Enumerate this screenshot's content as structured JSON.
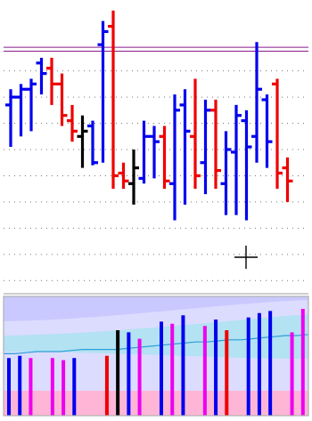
{
  "colors": {
    "up": "#0000ee",
    "down": "#ee0000",
    "neutral": "#000000",
    "volume_magenta": "#ee00ee",
    "grid": "#777777",
    "ref_line": "#8a1a8a",
    "ma_line": "#2aa0d8",
    "band_outer": "#c9c9ff",
    "band_middle": "#dcdcff",
    "band_inner": "#b3e2f2",
    "band_low": "#ffb6d6",
    "panel_border": "#b0b0b0"
  },
  "chart_data": [
    {
      "type": "ohlc",
      "name": "price-panel",
      "y_domain": [
        0,
        100
      ],
      "reference_lines": [
        94.0,
        92.5
      ],
      "gridlines": [
        85,
        75,
        65,
        55,
        45,
        35,
        25,
        15,
        5
      ],
      "bars": [
        {
          "open": 72,
          "high": 78,
          "low": 56,
          "close": 75,
          "color": "up"
        },
        {
          "open": 75,
          "high": 80,
          "low": 60,
          "close": 78,
          "color": "up"
        },
        {
          "open": 78,
          "high": 82,
          "low": 62,
          "close": 80,
          "color": "up"
        },
        {
          "open": 88,
          "high": 90,
          "low": 76,
          "close": 84,
          "color": "up"
        },
        {
          "open": 86,
          "high": 90,
          "low": 72,
          "close": 80,
          "color": "down"
        },
        {
          "open": 80,
          "high": 84,
          "low": 64,
          "close": 68,
          "color": "down"
        },
        {
          "open": 66,
          "high": 72,
          "low": 58,
          "close": 62,
          "color": "down"
        },
        {
          "open": 60,
          "high": 68,
          "low": 48,
          "close": 62,
          "color": "neutral"
        },
        {
          "open": 64,
          "high": 66,
          "low": 49,
          "close": 50,
          "color": "up"
        },
        {
          "open": 95,
          "high": 104,
          "low": 50,
          "close": 100,
          "color": "up"
        },
        {
          "open": 102,
          "high": 108,
          "low": 40,
          "close": 45,
          "color": "down"
        },
        {
          "open": 46,
          "high": 50,
          "low": 40,
          "close": 43,
          "color": "down"
        },
        {
          "open": 42,
          "high": 55,
          "low": 34,
          "close": 48,
          "color": "neutral"
        },
        {
          "open": 44,
          "high": 66,
          "low": 42,
          "close": 60,
          "color": "up"
        },
        {
          "open": 60,
          "high": 64,
          "low": 44,
          "close": 58,
          "color": "up"
        },
        {
          "open": 60,
          "high": 64,
          "low": 40,
          "close": 43,
          "color": "down"
        },
        {
          "open": 42,
          "high": 76,
          "low": 28,
          "close": 70,
          "color": "up"
        },
        {
          "open": 72,
          "high": 78,
          "low": 34,
          "close": 62,
          "color": "up"
        },
        {
          "open": 60,
          "high": 82,
          "low": 40,
          "close": 45,
          "color": "down"
        },
        {
          "open": 50,
          "high": 74,
          "low": 38,
          "close": 70,
          "color": "up"
        },
        {
          "open": 70,
          "high": 74,
          "low": 40,
          "close": 47,
          "color": "down"
        },
        {
          "open": 42,
          "high": 62,
          "low": 30,
          "close": 55,
          "color": "up"
        },
        {
          "open": 54,
          "high": 72,
          "low": 30,
          "close": 68,
          "color": "up"
        },
        {
          "open": 66,
          "high": 70,
          "low": 28,
          "close": 56,
          "color": "up"
        },
        {
          "open": 60,
          "high": 96,
          "low": 50,
          "close": 78,
          "color": "up"
        },
        {
          "open": 74,
          "high": 76,
          "low": 48,
          "close": 58,
          "color": "up"
        },
        {
          "open": 80,
          "high": 82,
          "low": 40,
          "close": 46,
          "color": "down"
        },
        {
          "open": 48,
          "high": 52,
          "low": 35,
          "close": 43,
          "color": "down"
        }
      ]
    },
    {
      "type": "bar",
      "name": "volume-panel",
      "y_domain": [
        0,
        100
      ],
      "values": [
        54,
        56,
        54,
        60,
        54,
        52,
        54,
        58,
        70,
        56,
        80,
        78,
        72,
        82,
        88,
        86,
        94,
        98,
        84,
        90,
        80,
        100,
        92,
        96,
        98,
        90,
        78,
        100
      ],
      "value_colors": [
        "up",
        "up",
        "volume_magenta",
        "down",
        "volume_magenta",
        "volume_magenta",
        "up",
        "down",
        "up",
        "down",
        "neutral",
        "up",
        "volume_magenta",
        "down",
        "up",
        "volume_magenta",
        "up",
        "down",
        "volume_magenta",
        "up",
        "down",
        "volume_magenta",
        "up",
        "up",
        "up",
        "down",
        "volume_magenta",
        "volume_magenta"
      ],
      "visible_bar_slots": [
        1,
        2,
        3,
        5,
        6,
        7,
        10,
        11,
        12,
        13,
        15,
        16,
        17,
        19,
        20,
        21,
        23,
        24,
        25,
        27,
        28
      ],
      "moving_average": [
        58,
        58,
        59,
        60,
        60,
        60,
        61,
        62,
        62,
        62,
        62,
        63,
        64,
        65,
        66,
        67,
        68,
        69,
        69,
        70,
        71,
        71,
        72,
        73,
        74,
        75,
        75,
        76
      ]
    }
  ]
}
